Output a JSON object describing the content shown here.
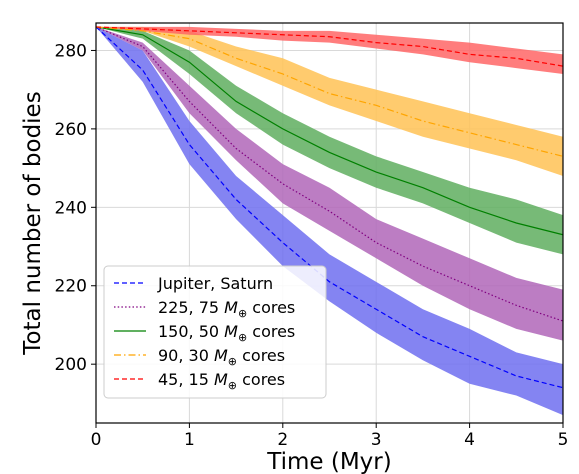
{
  "chart_data": {
    "type": "line",
    "xlabel": "Time (Myr)",
    "ylabel": "Total number of bodies",
    "xlim": [
      0,
      5
    ],
    "ylim": [
      185,
      287
    ],
    "xticks": [
      0,
      1,
      2,
      3,
      4,
      5
    ],
    "yticks": [
      200,
      220,
      240,
      260,
      280
    ],
    "grid": true,
    "legend_position": "bottom-left",
    "series": [
      {
        "name": "Jupiter, Saturn",
        "name_parts": [
          "Jupiter, Saturn"
        ],
        "color": "#0000ff",
        "band_color": "#6f6ff0",
        "linestyle": "dashed",
        "x": [
          0,
          0.5,
          1,
          1.5,
          2,
          2.5,
          3,
          3.5,
          4,
          4.5,
          5
        ],
        "mean": [
          286,
          275,
          256,
          242,
          231,
          221,
          214,
          207,
          202,
          197,
          194
        ],
        "upper": [
          286,
          280,
          262,
          248,
          238,
          228,
          221,
          214,
          209,
          203,
          200
        ],
        "lower": [
          286,
          272,
          251,
          237,
          225,
          216,
          208,
          201,
          195,
          192,
          187
        ]
      },
      {
        "name": "225, 75 M⊕ cores",
        "name_parts": [
          "225, 75 ",
          "M",
          "⊕",
          " cores"
        ],
        "color": "#800080",
        "band_color": "#b066b8",
        "linestyle": "dotted",
        "x": [
          0,
          0.5,
          1,
          1.5,
          2,
          2.5,
          3,
          3.5,
          4,
          4.5,
          5
        ],
        "mean": [
          286,
          281,
          267,
          255,
          246,
          239,
          231,
          225,
          220,
          215,
          211
        ],
        "upper": [
          286,
          282,
          271,
          260,
          251,
          245,
          237,
          232,
          227,
          222,
          219
        ],
        "lower": [
          286,
          280,
          264,
          252,
          241,
          234,
          227,
          220,
          214,
          209,
          206
        ]
      },
      {
        "name": "150, 50 M⊕ cores",
        "name_parts": [
          "150, 50 ",
          "M",
          "⊕",
          " cores"
        ],
        "color": "#008000",
        "band_color": "#5fae5f",
        "linestyle": "solid",
        "x": [
          0,
          0.5,
          1,
          1.5,
          2,
          2.5,
          3,
          3.5,
          4,
          4.5,
          5
        ],
        "mean": [
          286,
          284,
          277,
          267,
          260,
          254,
          249,
          245,
          240,
          236,
          233
        ],
        "upper": [
          286,
          285,
          280,
          271,
          264,
          258,
          253,
          249,
          245,
          242,
          238
        ],
        "lower": [
          286,
          283,
          274,
          264,
          256,
          250,
          245,
          241,
          236,
          231,
          228
        ]
      },
      {
        "name": "90, 30 M⊕ cores",
        "name_parts": [
          "90, 30 ",
          "M",
          "⊕",
          " cores"
        ],
        "color": "#ffa500",
        "band_color": "#ffc255",
        "linestyle": "dashdot",
        "x": [
          0,
          0.5,
          1,
          1.5,
          2,
          2.5,
          3,
          3.5,
          4,
          4.5,
          5
        ],
        "mean": [
          286,
          285,
          283,
          278,
          274,
          269,
          266,
          262,
          259,
          256,
          253
        ],
        "upper": [
          286,
          286,
          285,
          281,
          278,
          273,
          270,
          267,
          264,
          261,
          258
        ],
        "lower": [
          286,
          285,
          281,
          276,
          271,
          266,
          262,
          258,
          255,
          252,
          248
        ]
      },
      {
        "name": "45, 15 M⊕ cores",
        "name_parts": [
          "45, 15 ",
          "M",
          "⊕",
          " cores"
        ],
        "color": "#ff0000",
        "band_color": "#ff6666",
        "linestyle": "dashed",
        "x": [
          0,
          0.5,
          1,
          1.5,
          2,
          2.5,
          3,
          3.5,
          4,
          4.5,
          5
        ],
        "mean": [
          286,
          285.5,
          285,
          284.5,
          284,
          283.5,
          282,
          281,
          279,
          278,
          276
        ],
        "upper": [
          286,
          286,
          286,
          285.5,
          285,
          285,
          284,
          283,
          282,
          280.5,
          279
        ],
        "lower": [
          286,
          285,
          284,
          283.5,
          282.5,
          282,
          280.5,
          279,
          277,
          275.5,
          274
        ]
      }
    ]
  }
}
